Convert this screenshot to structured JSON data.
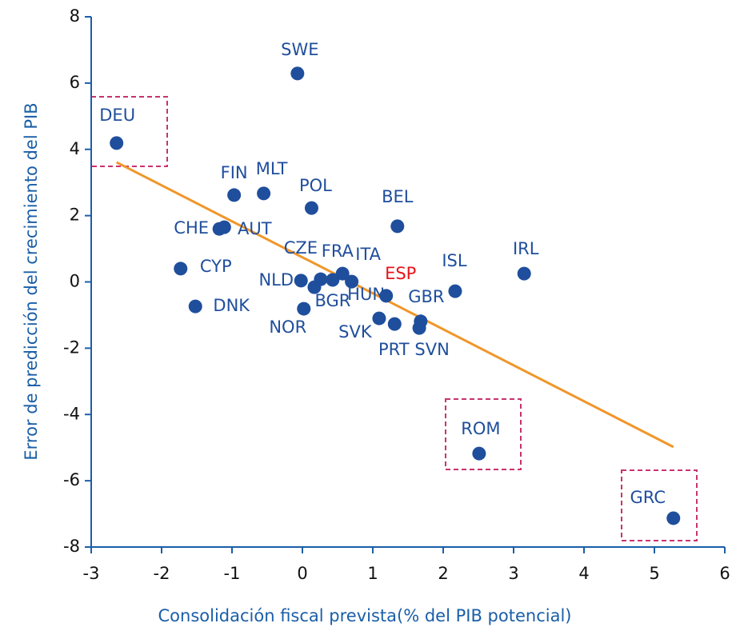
{
  "chart_data": {
    "type": "scatter",
    "x_label": "Consolidación  fiscal prevista(% del PIB potencial)",
    "y_label": "Error de predicción del crecimiento del PIB",
    "xlim": [
      -3,
      6
    ],
    "xticks": [
      -3,
      -2,
      -1,
      0,
      1,
      2,
      3,
      4,
      5,
      6
    ],
    "ylim": [
      -8,
      8
    ],
    "yticks": [
      -8,
      -6,
      -4,
      -2,
      0,
      2,
      4,
      6,
      8
    ],
    "color": "#1f4e9c",
    "axis_color": "#1a5ea8",
    "labels": [
      "SWE",
      "DEU",
      "FIN",
      "MLT",
      "POL",
      "BEL",
      "CHE",
      "AUT",
      "CYP",
      "DNK",
      "NLD",
      "BGR",
      "CZE",
      "FRA",
      "ITA",
      "HUN",
      "ESP",
      "NOR",
      "SVK",
      "PRT",
      "SVN",
      "GBR",
      "ISL",
      "IRL",
      "ROM",
      "GRC"
    ],
    "x": [
      -0.07,
      -2.64,
      -0.97,
      -0.55,
      0.13,
      1.35,
      -1.18,
      -1.11,
      -1.73,
      -1.52,
      -0.02,
      0.17,
      0.26,
      0.43,
      0.57,
      0.7,
      1.19,
      0.02,
      1.09,
      1.31,
      1.66,
      1.68,
      2.17,
      3.15,
      2.51,
      5.27
    ],
    "y": [
      6.29,
      4.19,
      2.62,
      2.67,
      2.23,
      1.68,
      1.6,
      1.65,
      0.4,
      -0.74,
      0.04,
      -0.16,
      0.08,
      0.06,
      0.25,
      0.01,
      -0.42,
      -0.81,
      -1.1,
      -1.27,
      -1.39,
      -1.19,
      -0.28,
      0.25,
      -5.18,
      -7.13
    ],
    "label_colors": [
      "#1f4e9c",
      "#1f4e9c",
      "#1f4e9c",
      "#1f4e9c",
      "#1f4e9c",
      "#1f4e9c",
      "#1f4e9c",
      "#1f4e9c",
      "#1f4e9c",
      "#1f4e9c",
      "#1f4e9c",
      "#1f4e9c",
      "#1f4e9c",
      "#1f4e9c",
      "#1f4e9c",
      "#1f4e9c",
      "#e8141b",
      "#1f4e9c",
      "#1f4e9c",
      "#1f4e9c",
      "#1f4e9c",
      "#1f4e9c",
      "#1f4e9c",
      "#1f4e9c",
      "#1f4e9c",
      "#1f4e9c"
    ],
    "trend": {
      "x": [
        -2.64,
        5.27
      ],
      "y": [
        3.61,
        -4.98
      ],
      "color": "#f0962a"
    }
  }
}
